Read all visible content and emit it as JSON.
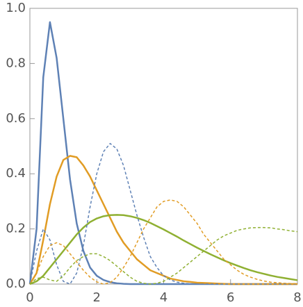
{
  "chart_data": {
    "type": "line",
    "x": [
      0,
      0.2,
      0.4,
      0.6,
      0.8,
      1,
      1.2,
      1.4,
      1.6,
      1.8,
      2,
      2.2,
      2.4,
      2.6,
      2.8,
      3,
      3.2,
      3.4,
      3.6,
      3.8,
      4,
      4.2,
      4.4,
      4.6,
      4.8,
      5,
      5.2,
      5.4,
      5.6,
      5.8,
      6,
      6.2,
      6.4,
      6.6,
      6.8,
      7,
      7.2,
      7.4,
      7.6,
      7.8,
      8
    ],
    "series": [
      {
        "color": "#5e81b5",
        "dashed": false,
        "values": [
          0,
          0.2,
          0.75,
          0.95,
          0.82,
          0.6,
          0.38,
          0.22,
          0.12,
          0.06,
          0.03,
          0.015,
          0.007,
          0.003,
          0.001,
          0,
          0,
          0,
          0,
          0,
          0,
          0,
          0,
          0,
          0,
          0,
          0,
          0,
          0,
          0,
          0,
          0,
          0,
          0,
          0,
          0,
          0,
          0,
          0,
          0,
          0
        ]
      },
      {
        "color": "#e19c24",
        "dashed": false,
        "values": [
          0,
          0.04,
          0.16,
          0.29,
          0.39,
          0.45,
          0.465,
          0.46,
          0.43,
          0.39,
          0.34,
          0.29,
          0.24,
          0.19,
          0.15,
          0.12,
          0.09,
          0.07,
          0.05,
          0.04,
          0.03,
          0.02,
          0.015,
          0.01,
          0.008,
          0.005,
          0.004,
          0.003,
          0.002,
          0.001,
          0,
          0,
          0,
          0,
          0,
          0,
          0,
          0,
          0,
          0,
          0
        ]
      },
      {
        "color": "#8fb032",
        "dashed": false,
        "values": [
          0,
          0.01,
          0.03,
          0.06,
          0.09,
          0.12,
          0.15,
          0.18,
          0.205,
          0.225,
          0.238,
          0.246,
          0.25,
          0.251,
          0.25,
          0.246,
          0.24,
          0.232,
          0.222,
          0.21,
          0.198,
          0.185,
          0.172,
          0.158,
          0.145,
          0.132,
          0.12,
          0.108,
          0.097,
          0.086,
          0.076,
          0.067,
          0.058,
          0.05,
          0.043,
          0.037,
          0.031,
          0.026,
          0.022,
          0.018,
          0.014
        ]
      },
      {
        "color": "#5e81b5",
        "dashed": true,
        "values": [
          0,
          0.12,
          0.2,
          0.16,
          0.07,
          0.01,
          0,
          0.04,
          0.14,
          0.28,
          0.4,
          0.48,
          0.51,
          0.49,
          0.43,
          0.34,
          0.25,
          0.17,
          0.1,
          0.06,
          0.03,
          0.015,
          0.007,
          0.003,
          0.001,
          0,
          0,
          0,
          0,
          0,
          0,
          0,
          0,
          0,
          0,
          0,
          0,
          0,
          0,
          0,
          0
        ]
      },
      {
        "color": "#e19c24",
        "dashed": true,
        "values": [
          0,
          0.04,
          0.1,
          0.14,
          0.15,
          0.14,
          0.11,
          0.08,
          0.05,
          0.025,
          0.008,
          0,
          0.005,
          0.025,
          0.06,
          0.1,
          0.15,
          0.2,
          0.24,
          0.28,
          0.3,
          0.305,
          0.3,
          0.28,
          0.25,
          0.22,
          0.18,
          0.15,
          0.12,
          0.09,
          0.07,
          0.05,
          0.035,
          0.025,
          0.017,
          0.011,
          0.007,
          0.005,
          0.003,
          0.002,
          0.001
        ]
      },
      {
        "color": "#8fb032",
        "dashed": true,
        "values": [
          0,
          0.02,
          0.025,
          0.015,
          0.01,
          0.03,
          0.06,
          0.085,
          0.1,
          0.11,
          0.11,
          0.1,
          0.085,
          0.065,
          0.045,
          0.025,
          0.01,
          0.003,
          0,
          0.003,
          0.01,
          0.025,
          0.04,
          0.06,
          0.08,
          0.1,
          0.12,
          0.14,
          0.16,
          0.175,
          0.185,
          0.195,
          0.2,
          0.204,
          0.205,
          0.205,
          0.204,
          0.2,
          0.197,
          0.193,
          0.19
        ]
      }
    ],
    "xlim": [
      0,
      8
    ],
    "xticks": [
      0,
      2,
      4,
      6,
      8
    ],
    "ylim": [
      0,
      1
    ],
    "yticks": [
      {
        "value": 0,
        "label": "0.0"
      },
      0.2,
      0.4,
      0.6,
      0.8,
      {
        "value": 1,
        "label": "1.0"
      }
    ]
  }
}
